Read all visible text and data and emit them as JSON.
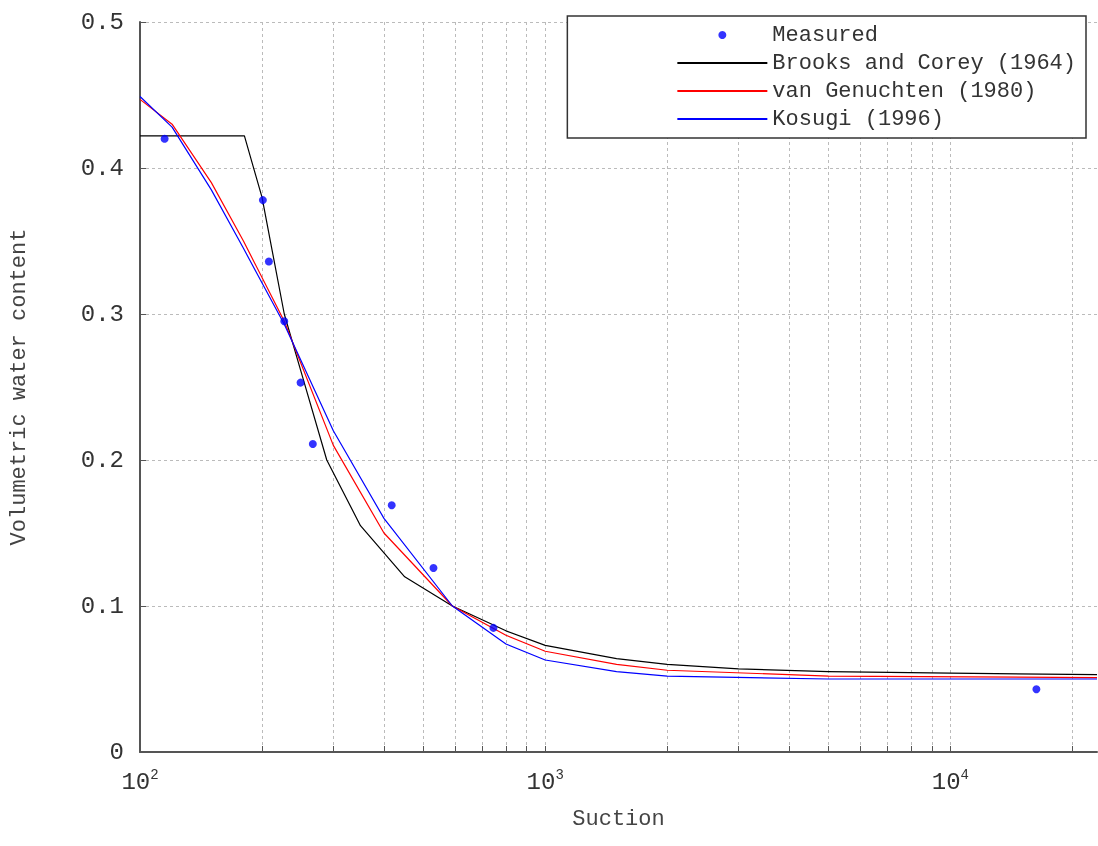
{
  "chart_data": {
    "type": "line",
    "xlabel": "Suction",
    "ylabel": "Volumetric water content",
    "log": "x",
    "grid": true,
    "legend": "top right",
    "xlim": [
      100,
      23000
    ],
    "xticks": [
      {
        "value": 100,
        "label": "10$^{2}$"
      },
      {
        "value": 200,
        "label": null
      },
      {
        "value": 300,
        "label": null
      },
      {
        "value": 400,
        "label": null
      },
      {
        "value": 500,
        "label": null
      },
      {
        "value": 600,
        "label": null
      },
      {
        "value": 700,
        "label": null
      },
      {
        "value": 800,
        "label": null
      },
      {
        "value": 900,
        "label": null
      },
      {
        "value": 1000,
        "label": "10$^{3}$"
      },
      {
        "value": 2000,
        "label": null
      },
      {
        "value": 3000,
        "label": null
      },
      {
        "value": 4000,
        "label": null
      },
      {
        "value": 5000,
        "label": null
      },
      {
        "value": 6000,
        "label": null
      },
      {
        "value": 7000,
        "label": null
      },
      {
        "value": 8000,
        "label": null
      },
      {
        "value": 9000,
        "label": null
      },
      {
        "value": 10000,
        "label": "10$^{4}$"
      },
      {
        "value": 20000,
        "label": null
      }
    ],
    "ylim": [
      0,
      0.5
    ],
    "yticks": [
      0,
      0.1,
      0.2,
      0.3,
      0.4,
      0.5
    ],
    "series": [
      {
        "name": "Measured",
        "type": "scatter",
        "marker": "circle",
        "color": "#0000ff",
        "x": [
          115,
          201,
          208,
          227,
          249,
          267,
          418,
          530,
          745,
          16300
        ],
        "values": [
          0.42,
          0.378,
          0.336,
          0.295,
          0.253,
          0.211,
          0.169,
          0.126,
          0.085,
          0.043
        ]
      },
      {
        "name": "Brooks and Corey (1964)",
        "color": "#000000",
        "x": [
          100,
          181,
          200,
          227,
          250,
          289,
          350,
          450,
          590,
          800,
          1000,
          1500,
          2000,
          3000,
          5000,
          10000,
          23000
        ],
        "values": [
          0.422,
          0.422,
          0.38,
          0.3,
          0.26,
          0.2,
          0.155,
          0.12,
          0.1,
          0.083,
          0.073,
          0.064,
          0.06,
          0.057,
          0.055,
          0.054,
          0.053
        ]
      },
      {
        "name": "van Genuchten (1980)",
        "color": "#ff0000",
        "x": [
          100,
          120,
          150,
          180,
          227,
          300,
          400,
          590,
          800,
          1000,
          1500,
          2000,
          5000,
          23000
        ],
        "values": [
          0.447,
          0.43,
          0.39,
          0.35,
          0.295,
          0.21,
          0.15,
          0.1,
          0.08,
          0.069,
          0.06,
          0.056,
          0.052,
          0.051
        ]
      },
      {
        "name": "Kosugi (1996)",
        "color": "#0000ff",
        "x": [
          100,
          120,
          150,
          180,
          227,
          300,
          400,
          590,
          800,
          1000,
          1500,
          2000,
          5000,
          23000
        ],
        "values": [
          0.449,
          0.428,
          0.385,
          0.345,
          0.293,
          0.22,
          0.16,
          0.1,
          0.074,
          0.063,
          0.055,
          0.052,
          0.05,
          0.05
        ]
      }
    ]
  }
}
